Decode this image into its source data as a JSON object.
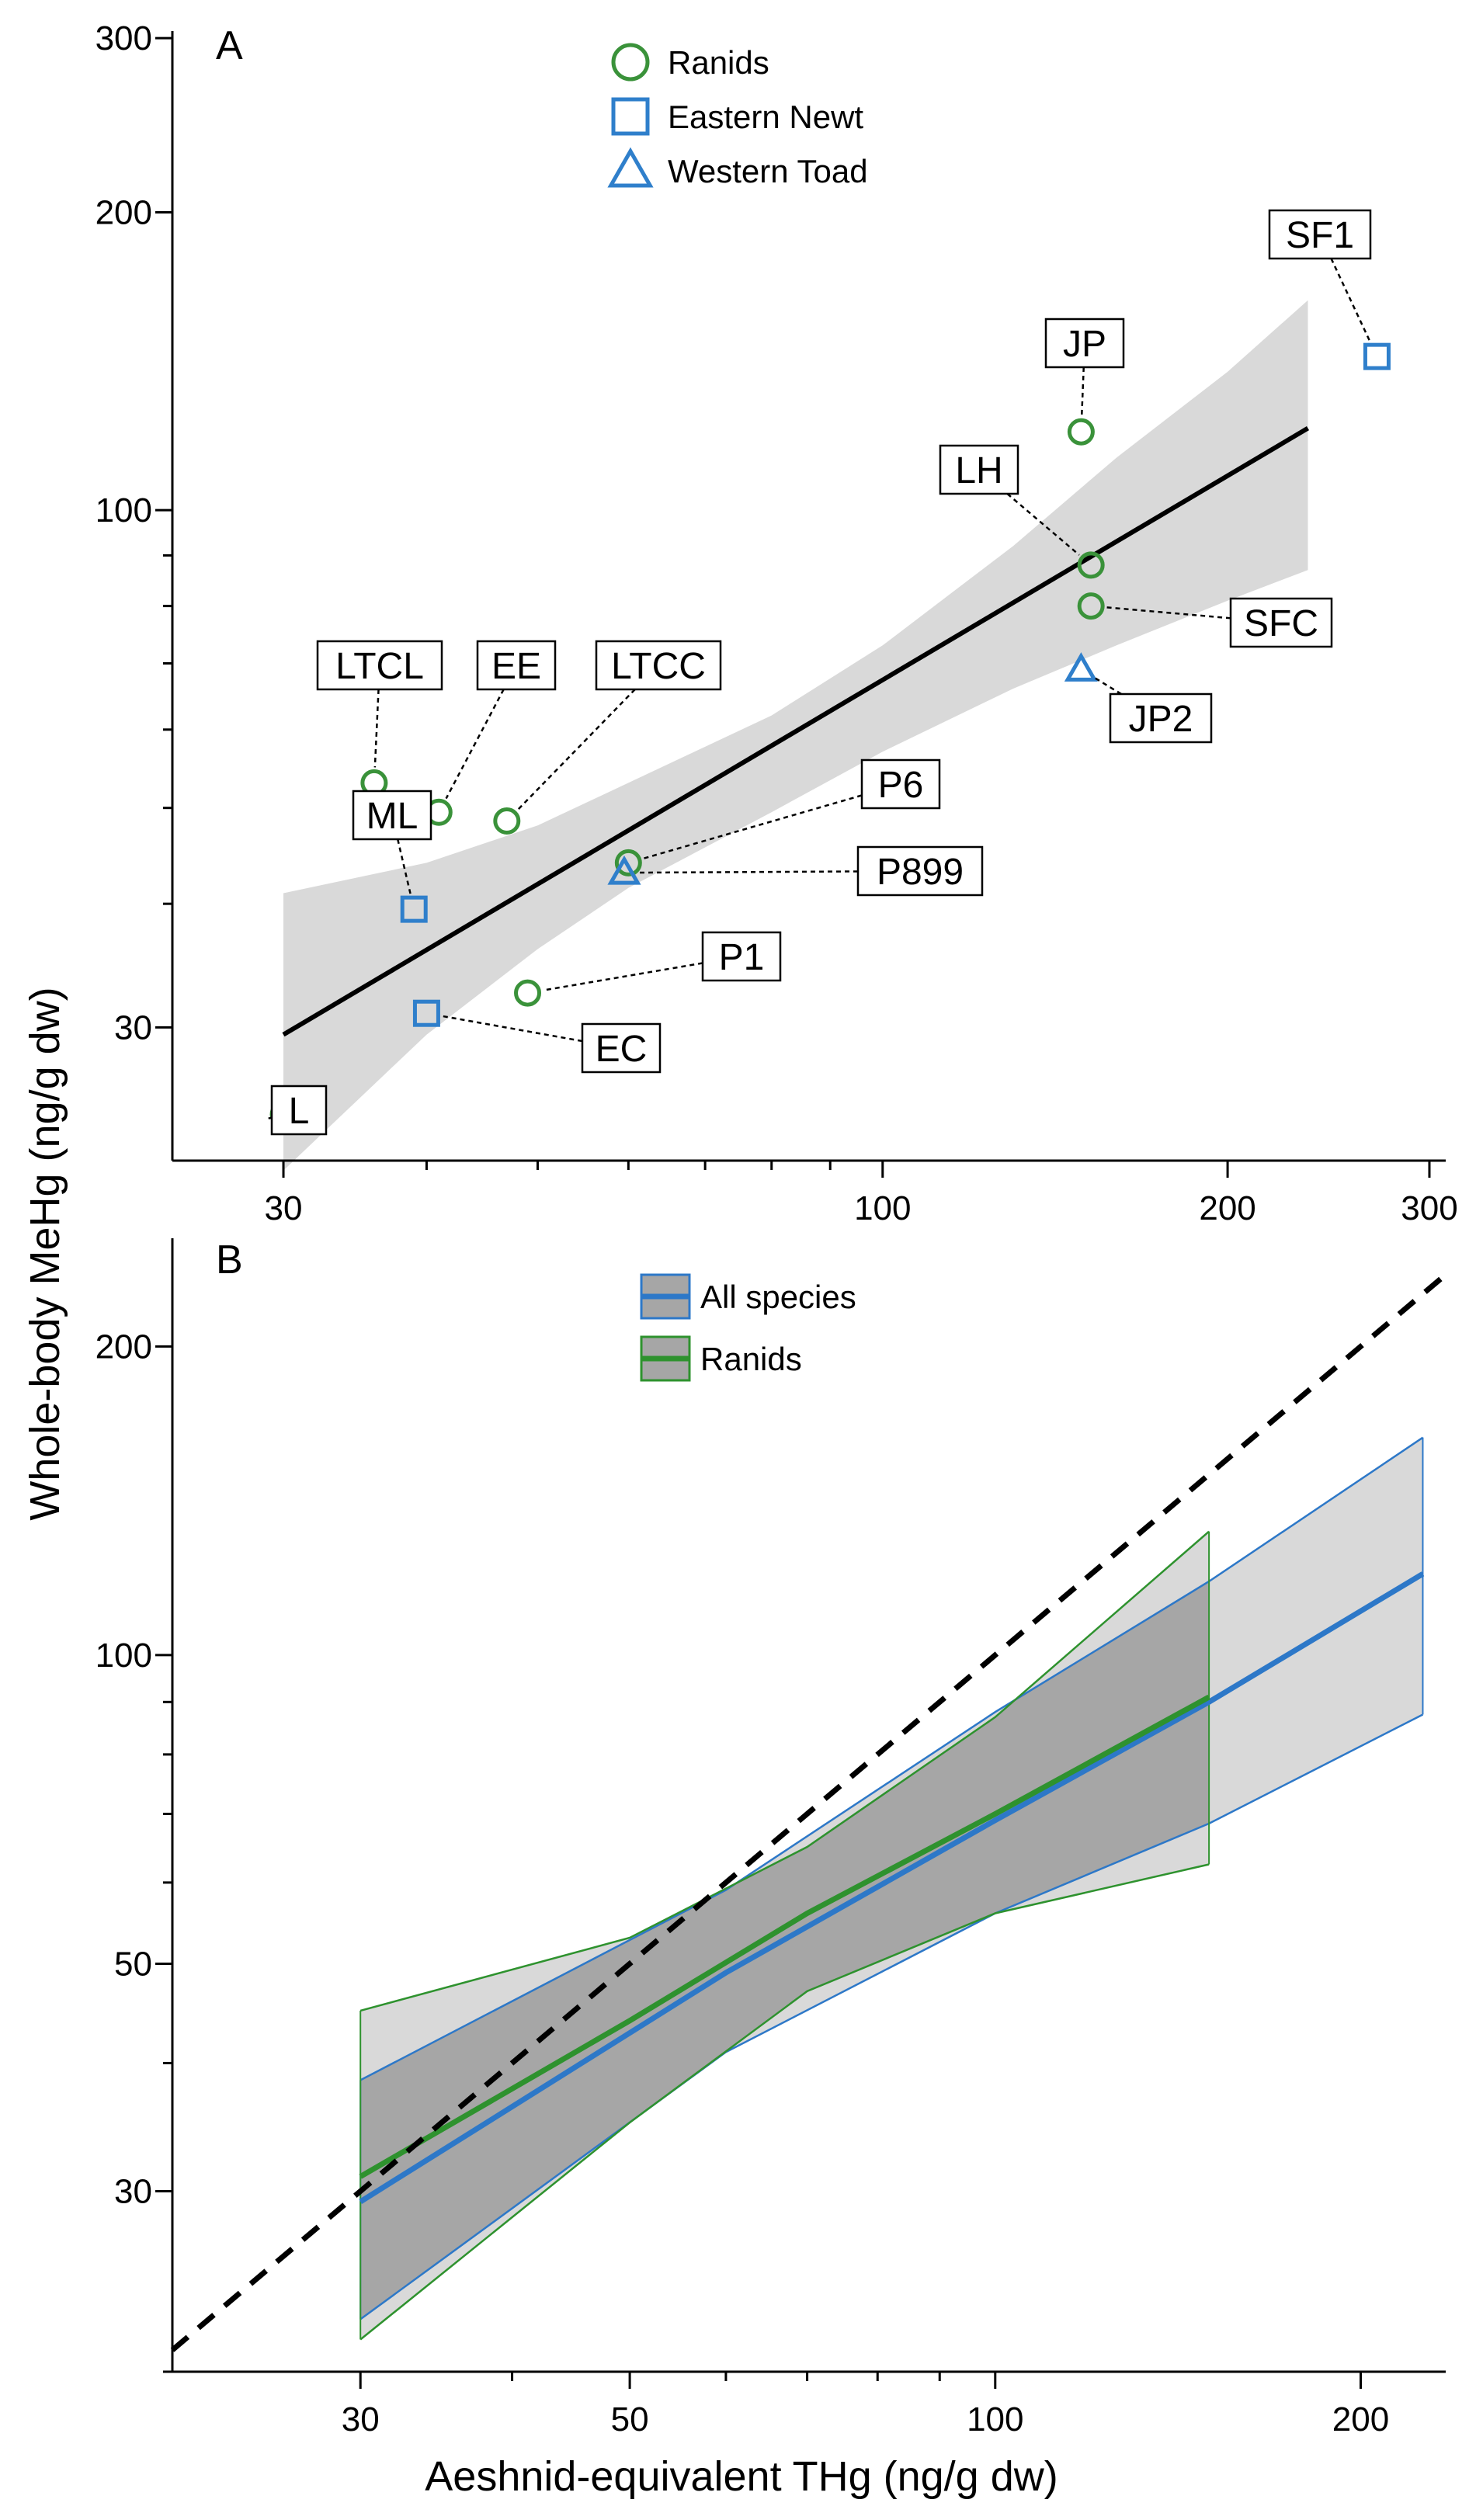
{
  "figure": {
    "ylabel": "Whole-body MeHg (ng/g dw)",
    "xlabel": "Aeshnid-equivalent THg (ng/g dw)"
  },
  "colors": {
    "ranid_green": "#3a923a",
    "newt_blue": "#2f7fcb",
    "ci_light_gray": "#d9d9d9",
    "ci_dark_gray": "#a6a6a6",
    "fit_line": "#000000",
    "all_species_blue": "#2d78c8",
    "ranids_green": "#2e922e"
  },
  "chart_data": [
    {
      "panel": "A",
      "type": "scatter",
      "x_scale": "log",
      "y_scale": "log",
      "xlim": [
        24,
        310
      ],
      "ylim": [
        22,
        305
      ],
      "x_ticks": [
        30,
        100,
        200,
        300
      ],
      "y_ticks": [
        30,
        100,
        200,
        300
      ],
      "legend": {
        "position": "top-center",
        "entries": [
          {
            "label": "Ranids",
            "marker": "circle",
            "color": "#3a923a"
          },
          {
            "label": "Eastern Newt",
            "marker": "square",
            "color": "#2f7fcb"
          },
          {
            "label": "Western Toad",
            "marker": "triangle",
            "color": "#2f7fcb"
          }
        ]
      },
      "points": [
        {
          "label": "L",
          "x": 30,
          "y": 24.5,
          "group": "Ranids"
        },
        {
          "label": "LTCL",
          "x": 36,
          "y": 53,
          "group": "Ranids"
        },
        {
          "label": "EE",
          "x": 41,
          "y": 49.5,
          "group": "Ranids"
        },
        {
          "label": "LTCC",
          "x": 47,
          "y": 48.5,
          "group": "Ranids"
        },
        {
          "label": "ML",
          "x": 39,
          "y": 39.5,
          "group": "Eastern Newt"
        },
        {
          "label": "EC",
          "x": 40,
          "y": 31,
          "group": "Eastern Newt"
        },
        {
          "label": "P1",
          "x": 49,
          "y": 32.5,
          "group": "Ranids"
        },
        {
          "label": "P6",
          "x": 60,
          "y": 44,
          "group": "Ranids"
        },
        {
          "label": "P899",
          "x": 59.5,
          "y": 43,
          "group": "Western Toad"
        },
        {
          "label": "JP",
          "x": 149,
          "y": 120,
          "group": "Ranids"
        },
        {
          "label": "LH",
          "x": 152,
          "y": 88,
          "group": "Ranids"
        },
        {
          "label": "SFC",
          "x": 152,
          "y": 80,
          "group": "Ranids"
        },
        {
          "label": "JP2",
          "x": 149,
          "y": 69,
          "group": "Western Toad"
        },
        {
          "label": "SF1",
          "x": 270,
          "y": 143,
          "group": "Eastern Newt"
        }
      ],
      "fit": {
        "x": [
          30,
          235
        ],
        "y": [
          29.5,
          121
        ]
      },
      "ci_band": {
        "x": [
          30,
          40,
          50,
          60,
          80,
          100,
          130,
          160,
          200,
          235
        ],
        "lower": [
          21.5,
          29.5,
          36,
          41.5,
          49.5,
          57,
          66,
          73,
          81,
          87
        ],
        "upper": [
          41,
          44,
          48,
          53,
          62,
          73,
          92,
          113,
          138,
          163
        ]
      }
    },
    {
      "panel": "B",
      "type": "line",
      "x_scale": "log",
      "y_scale": "log",
      "xlim": [
        21,
        235
      ],
      "ylim": [
        20,
        255
      ],
      "x_ticks": [
        30,
        50,
        100,
        200
      ],
      "y_ticks": [
        30,
        50,
        100,
        200
      ],
      "legend": {
        "position": "top-center",
        "entries": [
          {
            "label": "All species",
            "color": "#2d78c8"
          },
          {
            "label": "Ranids",
            "color": "#2e922e"
          }
        ]
      },
      "series": [
        {
          "name": "All species",
          "x": [
            30,
            60,
            100,
            150,
            225
          ],
          "fit": [
            29.3,
            49,
            69,
            90,
            120
          ],
          "lower": [
            22.5,
            41,
            56,
            68.5,
            87.5
          ],
          "upper": [
            38.5,
            59,
            88,
            118,
            163
          ]
        },
        {
          "name": "Ranids",
          "x": [
            30,
            50,
            70,
            100,
            150
          ],
          "fit": [
            31,
            44,
            56,
            70,
            91
          ],
          "lower": [
            21.5,
            35,
            47,
            56,
            62.5
          ],
          "upper": [
            45,
            53,
            65,
            87,
            132
          ]
        }
      ],
      "reference_line": {
        "x": [
          21,
          235
        ],
        "y": [
          21,
          235
        ],
        "style": "dashed"
      }
    }
  ]
}
